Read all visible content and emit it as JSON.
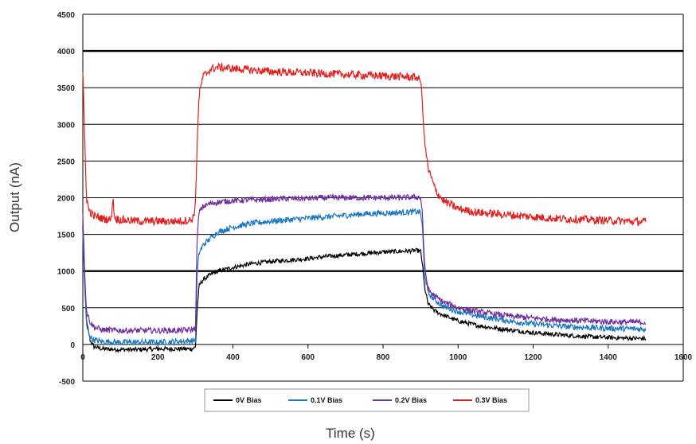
{
  "chart_data": {
    "type": "line",
    "title": "",
    "xlabel": "Time  (s)",
    "ylabel": "Output (nA)",
    "xlim": [
      0,
      1600
    ],
    "ylim": [
      -500,
      4500
    ],
    "x_ticks": [
      0,
      200,
      400,
      600,
      800,
      1000,
      1200,
      1400,
      1600
    ],
    "x_tick_labels": [
      "0",
      "200",
      "400",
      "600",
      "800",
      "1000",
      "1200",
      "1400",
      "1600"
    ],
    "y_ticks": [
      -500,
      0,
      500,
      1000,
      1500,
      2000,
      2500,
      3000,
      3500,
      4000,
      4500
    ],
    "y_tick_labels": [
      "-500",
      "0",
      "500",
      "1000",
      "1500",
      "2000",
      "2500",
      "3000",
      "3500",
      "4000",
      "4500"
    ],
    "bold_gridlines": [
      1000,
      4000
    ],
    "grid": true,
    "legend_position": "bottom",
    "series": [
      {
        "name": "0V Bias",
        "color": "#000000",
        "x": [
          0,
          5,
          10,
          20,
          30,
          50,
          100,
          150,
          200,
          250,
          290,
          300,
          305,
          310,
          320,
          340,
          360,
          400,
          450,
          500,
          550,
          600,
          650,
          700,
          750,
          800,
          850,
          890,
          900,
          905,
          910,
          920,
          940,
          960,
          1000,
          1050,
          1100,
          1150,
          1200,
          1250,
          1300,
          1350,
          1400,
          1450,
          1500
        ],
        "y": [
          1600,
          900,
          300,
          50,
          -30,
          -60,
          -70,
          -70,
          -60,
          -60,
          -60,
          -40,
          500,
          800,
          880,
          950,
          1000,
          1050,
          1100,
          1130,
          1150,
          1170,
          1200,
          1220,
          1240,
          1260,
          1270,
          1280,
          1270,
          1100,
          800,
          550,
          450,
          400,
          320,
          260,
          220,
          190,
          160,
          140,
          120,
          105,
          95,
          85,
          80
        ]
      },
      {
        "name": "0.1V Bias",
        "color": "#1a78c2",
        "x": [
          0,
          5,
          10,
          20,
          30,
          50,
          100,
          150,
          200,
          250,
          290,
          300,
          305,
          310,
          320,
          340,
          360,
          400,
          450,
          500,
          550,
          600,
          650,
          700,
          750,
          800,
          850,
          890,
          900,
          905,
          910,
          920,
          940,
          960,
          1000,
          1050,
          1100,
          1150,
          1200,
          1250,
          1300,
          1350,
          1400,
          1450,
          1500
        ],
        "y": [
          1500,
          800,
          250,
          100,
          60,
          40,
          30,
          30,
          30,
          40,
          50,
          60,
          1000,
          1250,
          1350,
          1450,
          1530,
          1600,
          1650,
          1680,
          1700,
          1720,
          1740,
          1760,
          1780,
          1790,
          1800,
          1810,
          1800,
          1600,
          1000,
          700,
          600,
          520,
          450,
          390,
          350,
          310,
          280,
          260,
          240,
          230,
          220,
          215,
          210
        ]
      },
      {
        "name": "0.2V Bias",
        "color": "#7030a0",
        "x": [
          0,
          5,
          10,
          20,
          30,
          50,
          100,
          150,
          200,
          250,
          290,
          300,
          305,
          310,
          320,
          340,
          360,
          400,
          450,
          500,
          550,
          600,
          650,
          700,
          750,
          800,
          850,
          890,
          900,
          905,
          910,
          920,
          940,
          960,
          1000,
          1050,
          1100,
          1150,
          1200,
          1250,
          1300,
          1350,
          1400,
          1450,
          1500
        ],
        "y": [
          1800,
          1000,
          450,
          300,
          240,
          200,
          190,
          190,
          190,
          190,
          200,
          220,
          1500,
          1800,
          1880,
          1920,
          1940,
          1960,
          1970,
          1980,
          1990,
          1990,
          2000,
          2000,
          2000,
          2000,
          2000,
          2010,
          2000,
          1800,
          1100,
          750,
          650,
          580,
          500,
          450,
          410,
          380,
          360,
          340,
          330,
          320,
          310,
          305,
          300
        ]
      },
      {
        "name": "0.3V Bias",
        "color": "#e02020",
        "x": [
          0,
          5,
          10,
          15,
          20,
          30,
          50,
          75,
          80,
          85,
          100,
          150,
          200,
          250,
          280,
          290,
          295,
          300,
          305,
          310,
          320,
          340,
          360,
          400,
          450,
          500,
          550,
          600,
          650,
          700,
          750,
          800,
          850,
          890,
          900,
          905,
          910,
          920,
          940,
          960,
          1000,
          1050,
          1100,
          1150,
          1200,
          1250,
          1300,
          1350,
          1400,
          1450,
          1500
        ],
        "y": [
          3700,
          2800,
          2000,
          1850,
          1800,
          1750,
          1720,
          1700,
          2000,
          1720,
          1700,
          1680,
          1680,
          1680,
          1690,
          1700,
          1750,
          1900,
          2800,
          3400,
          3650,
          3750,
          3780,
          3760,
          3740,
          3720,
          3710,
          3700,
          3690,
          3680,
          3670,
          3660,
          3650,
          3640,
          3600,
          3300,
          2800,
          2400,
          2100,
          1960,
          1850,
          1800,
          1780,
          1760,
          1740,
          1720,
          1710,
          1700,
          1690,
          1680,
          1670
        ]
      }
    ]
  }
}
